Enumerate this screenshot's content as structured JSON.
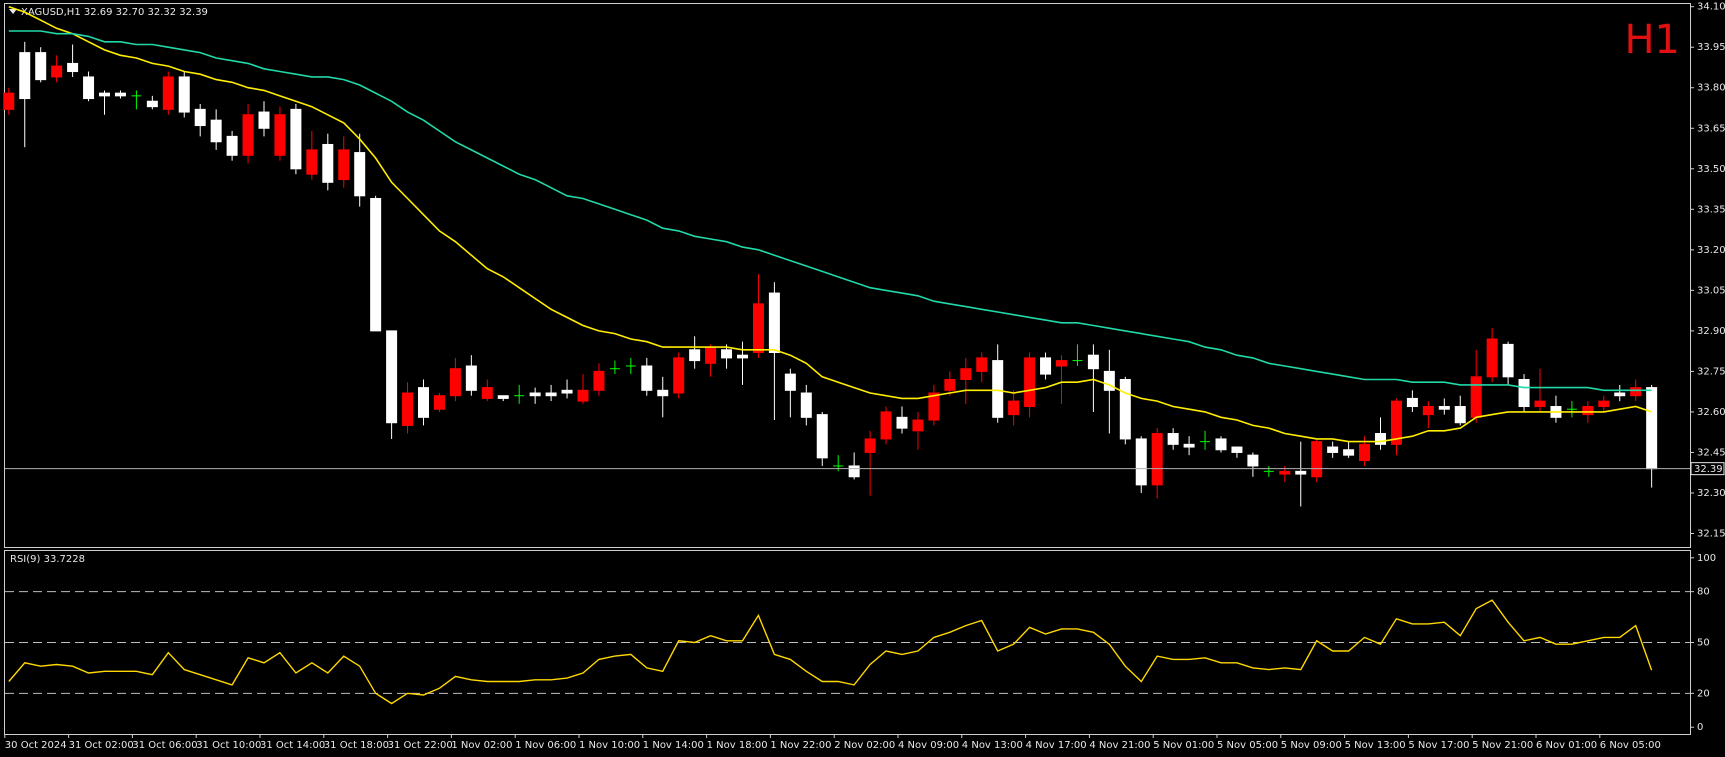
{
  "chart_data": {
    "type": "candlestick",
    "title": "XAGUSD,H1  32.69 32.70 32.32 32.39",
    "timeframe_label": "H1",
    "categories": [
      "30 Oct 2024",
      null,
      null,
      null,
      "31 Oct 02:00",
      null,
      null,
      null,
      "31 Oct 06:00",
      null,
      null,
      null,
      "31 Oct 10:00",
      null,
      null,
      null,
      "31 Oct 14:00",
      null,
      null,
      null,
      "31 Oct 18:00",
      null,
      null,
      null,
      "31 Oct 22:00",
      null,
      null,
      null,
      "1 Nov 02:00",
      null,
      null,
      null,
      "1 Nov 06:00",
      null,
      null,
      null,
      "1 Nov 10:00",
      null,
      null,
      null,
      "1 Nov 14:00",
      null,
      null,
      null,
      "1 Nov 18:00",
      null,
      null,
      null,
      "1 Nov 22:00",
      null,
      null,
      null,
      "2 Nov 02:00",
      null,
      null,
      null,
      "4 Nov 09:00",
      null,
      null,
      null,
      "4 Nov 13:00",
      null,
      null,
      null,
      "4 Nov 17:00",
      null,
      null,
      null,
      "4 Nov 21:00",
      null,
      null,
      null,
      "5 Nov 01:00",
      null,
      null,
      null,
      "5 Nov 05:00",
      null,
      null,
      null,
      "5 Nov 09:00",
      null,
      null,
      null,
      "5 Nov 13:00",
      null,
      null,
      null,
      "5 Nov 17:00",
      null,
      null,
      null,
      "5 Nov 21:00",
      null,
      null,
      null,
      "6 Nov 01:00",
      null,
      null,
      null,
      "6 Nov 05:00",
      null,
      null,
      null
    ],
    "open": [
      33.72,
      33.93,
      33.93,
      33.84,
      33.89,
      33.84,
      33.78,
      33.78,
      33.77,
      33.75,
      33.72,
      33.84,
      33.72,
      33.68,
      33.62,
      33.55,
      33.71,
      33.55,
      33.72,
      33.48,
      33.59,
      33.46,
      33.56,
      33.39,
      32.9,
      32.55,
      32.69,
      32.61,
      32.66,
      32.77,
      32.65,
      32.66,
      32.66,
      32.67,
      32.67,
      32.68,
      32.64,
      32.68,
      32.76,
      32.77,
      32.77,
      32.68,
      32.67,
      32.83,
      32.78,
      32.83,
      32.81,
      32.82,
      33.04,
      32.74,
      32.67,
      32.59,
      32.4,
      32.4,
      32.45,
      32.5,
      32.58,
      32.53,
      32.57,
      32.68,
      32.72,
      32.75,
      32.79,
      32.59,
      32.62,
      32.8,
      32.77,
      32.79,
      32.81,
      32.75,
      32.72,
      32.5,
      32.33,
      32.52,
      32.48,
      32.49,
      32.5,
      32.47,
      32.44,
      32.38,
      32.37,
      32.38,
      32.36,
      32.47,
      32.46,
      32.42,
      32.52,
      32.48,
      32.65,
      32.59,
      32.62,
      32.62,
      32.58,
      32.73,
      32.85,
      32.72,
      32.62,
      32.62,
      32.61,
      32.59,
      32.62,
      32.67,
      32.66,
      32.69
    ],
    "high": [
      33.8,
      33.97,
      33.95,
      33.92,
      33.96,
      33.86,
      33.79,
      33.79,
      33.79,
      33.77,
      33.86,
      33.86,
      33.74,
      33.72,
      33.64,
      33.74,
      33.75,
      33.73,
      33.74,
      33.64,
      33.63,
      33.62,
      33.63,
      33.4,
      32.9,
      32.71,
      32.72,
      32.67,
      32.8,
      32.81,
      32.72,
      32.66,
      32.7,
      32.69,
      32.7,
      32.72,
      32.74,
      32.78,
      32.79,
      32.8,
      32.8,
      32.73,
      32.82,
      32.88,
      32.85,
      32.85,
      32.86,
      33.11,
      33.08,
      32.76,
      32.7,
      32.6,
      32.44,
      32.45,
      32.53,
      32.62,
      32.62,
      32.6,
      32.7,
      32.75,
      32.8,
      32.82,
      32.85,
      32.68,
      32.82,
      32.82,
      32.81,
      32.85,
      32.85,
      32.83,
      32.73,
      32.51,
      32.54,
      32.54,
      32.51,
      32.53,
      32.51,
      32.47,
      32.45,
      32.4,
      32.4,
      32.49,
      32.5,
      32.49,
      32.49,
      32.51,
      32.58,
      32.65,
      32.68,
      32.64,
      32.65,
      32.66,
      32.83,
      32.91,
      32.86,
      32.74,
      32.76,
      32.66,
      32.64,
      32.64,
      32.66,
      32.7,
      32.72,
      32.7
    ],
    "low": [
      33.7,
      33.58,
      33.82,
      33.82,
      33.84,
      33.75,
      33.7,
      33.76,
      33.72,
      33.72,
      33.7,
      33.69,
      33.62,
      33.57,
      33.53,
      33.52,
      33.62,
      33.53,
      33.48,
      33.46,
      33.42,
      33.43,
      33.36,
      32.9,
      32.5,
      32.52,
      32.55,
      32.6,
      32.64,
      32.66,
      32.64,
      32.64,
      32.63,
      32.63,
      32.64,
      32.65,
      32.63,
      32.66,
      32.74,
      32.74,
      32.66,
      32.58,
      32.65,
      32.76,
      32.73,
      32.76,
      32.7,
      32.8,
      32.57,
      32.58,
      32.55,
      32.4,
      32.38,
      32.35,
      32.29,
      32.48,
      32.52,
      32.46,
      32.55,
      32.66,
      32.63,
      32.71,
      32.56,
      32.55,
      32.58,
      32.72,
      32.63,
      32.77,
      32.6,
      32.52,
      32.48,
      32.3,
      32.28,
      32.46,
      32.44,
      32.46,
      32.45,
      32.43,
      32.36,
      32.36,
      32.34,
      32.25,
      32.34,
      32.43,
      32.43,
      32.4,
      32.46,
      32.44,
      32.6,
      32.54,
      32.59,
      32.55,
      32.56,
      32.71,
      32.7,
      32.6,
      32.6,
      32.56,
      32.58,
      32.56,
      32.6,
      32.64,
      32.64,
      32.32
    ],
    "close": [
      33.78,
      33.76,
      33.83,
      33.88,
      33.86,
      33.76,
      33.77,
      33.77,
      33.77,
      33.73,
      33.84,
      33.71,
      33.66,
      33.6,
      33.55,
      33.7,
      33.65,
      33.7,
      33.5,
      33.57,
      33.45,
      33.57,
      33.4,
      32.9,
      32.56,
      32.67,
      32.58,
      32.66,
      32.76,
      32.68,
      32.69,
      32.65,
      32.66,
      32.66,
      32.66,
      32.67,
      32.68,
      32.75,
      32.76,
      32.77,
      32.68,
      32.66,
      32.8,
      32.79,
      32.84,
      32.8,
      32.8,
      33.0,
      32.82,
      32.68,
      32.58,
      32.43,
      32.4,
      32.36,
      32.5,
      32.6,
      32.54,
      32.57,
      32.67,
      32.72,
      32.76,
      32.8,
      32.58,
      32.64,
      32.8,
      32.74,
      32.79,
      32.79,
      32.76,
      32.68,
      32.5,
      32.33,
      32.52,
      32.48,
      32.47,
      32.49,
      32.46,
      32.45,
      32.4,
      32.38,
      32.38,
      32.37,
      32.49,
      32.45,
      32.44,
      32.48,
      32.48,
      32.64,
      32.62,
      32.62,
      32.61,
      32.56,
      32.73,
      32.87,
      32.73,
      32.62,
      32.64,
      32.58,
      32.61,
      32.62,
      32.64,
      32.66,
      32.69,
      32.39
    ],
    "bull_color": "#ff0000",
    "bear_color": "#ffffff",
    "doji_color": "#00ff00",
    "moving_averages": [
      {
        "color": "#ffee00",
        "values": [
          34.1,
          34.08,
          34.05,
          34.02,
          34.0,
          33.97,
          33.94,
          33.92,
          33.91,
          33.89,
          33.88,
          33.86,
          33.85,
          33.83,
          33.82,
          33.8,
          33.79,
          33.77,
          33.75,
          33.73,
          33.7,
          33.67,
          33.61,
          33.54,
          33.45,
          33.39,
          33.33,
          33.27,
          33.23,
          33.18,
          33.13,
          33.1,
          33.06,
          33.02,
          32.98,
          32.95,
          32.92,
          32.9,
          32.89,
          32.87,
          32.86,
          32.84,
          32.84,
          32.84,
          32.84,
          32.84,
          32.83,
          32.83,
          32.83,
          32.81,
          32.78,
          32.73,
          32.71,
          32.69,
          32.67,
          32.66,
          32.65,
          32.65,
          32.66,
          32.67,
          32.68,
          32.68,
          32.68,
          32.67,
          32.68,
          32.69,
          32.71,
          32.71,
          32.72,
          32.7,
          32.67,
          32.65,
          32.64,
          32.62,
          32.61,
          32.6,
          32.58,
          32.57,
          32.55,
          32.54,
          32.52,
          32.51,
          32.5,
          32.5,
          32.49,
          32.49,
          32.49,
          32.5,
          32.51,
          32.53,
          32.53,
          32.54,
          32.58,
          32.59,
          32.6,
          32.6,
          32.6,
          32.6,
          32.6,
          32.6,
          32.6,
          32.61,
          32.62,
          32.6
        ]
      },
      {
        "color": "#20d8a8",
        "values": [
          34.01,
          34.01,
          34.01,
          34.0,
          34.0,
          33.99,
          33.97,
          33.97,
          33.96,
          33.96,
          33.95,
          33.94,
          33.93,
          33.91,
          33.9,
          33.89,
          33.87,
          33.86,
          33.85,
          33.84,
          33.84,
          33.83,
          33.81,
          33.78,
          33.75,
          33.71,
          33.68,
          33.64,
          33.6,
          33.57,
          33.54,
          33.51,
          33.48,
          33.46,
          33.43,
          33.4,
          33.39,
          33.37,
          33.35,
          33.33,
          33.31,
          33.28,
          33.27,
          33.25,
          33.24,
          33.23,
          33.21,
          33.2,
          33.18,
          33.16,
          33.14,
          33.12,
          33.1,
          33.08,
          33.06,
          33.05,
          33.04,
          33.03,
          33.01,
          33.0,
          32.99,
          32.98,
          32.97,
          32.96,
          32.95,
          32.94,
          32.93,
          32.93,
          32.92,
          32.91,
          32.9,
          32.89,
          32.88,
          32.87,
          32.86,
          32.84,
          32.83,
          32.81,
          32.8,
          32.78,
          32.77,
          32.76,
          32.75,
          32.74,
          32.73,
          32.72,
          32.72,
          32.72,
          32.71,
          32.71,
          32.71,
          32.7,
          32.7,
          32.7,
          32.7,
          32.69,
          32.69,
          32.69,
          32.69,
          32.69,
          32.68,
          32.68,
          32.68,
          32.68
        ]
      }
    ],
    "ylim": [
      32.1,
      34.11
    ],
    "yticks": [
      {
        "value": 32.15,
        "label": "32.15"
      },
      {
        "value": 32.3,
        "label": "32.30"
      },
      32.45,
      {
        "value": 32.6,
        "label": "32.60"
      },
      32.75,
      {
        "value": 32.9,
        "label": "32.90"
      },
      33.05,
      {
        "value": 33.2,
        "label": "33.20"
      },
      33.35,
      {
        "value": 33.5,
        "label": "33.50"
      },
      33.65,
      {
        "value": 33.8,
        "label": "33.80"
      },
      33.95,
      {
        "value": 34.1,
        "label": "34.10"
      }
    ],
    "indicator": {
      "title": "RSI(9) 33.7228",
      "color": "#ffd700",
      "ylim": [
        -4,
        104
      ],
      "yticks": [
        0,
        20,
        50,
        80,
        100
      ],
      "levels": [
        20,
        50,
        80
      ],
      "values": [
        27,
        38,
        36,
        37,
        36,
        32,
        33,
        33,
        33,
        31,
        44,
        34,
        31,
        28,
        25,
        41,
        38,
        44,
        32,
        38,
        32,
        42,
        36,
        20,
        14,
        20,
        19,
        23,
        30,
        28,
        27,
        27,
        27,
        28,
        28,
        29,
        32,
        40,
        42,
        43,
        35,
        33,
        51,
        50,
        54,
        51,
        51,
        66,
        43,
        40,
        33,
        27,
        27,
        25,
        37,
        45,
        43,
        45,
        53,
        56,
        60,
        63,
        45,
        49,
        59,
        55,
        58,
        58,
        56,
        49,
        36,
        27,
        42,
        40,
        40,
        41,
        38,
        38,
        35,
        34,
        35,
        34,
        51,
        45,
        45,
        53,
        49,
        64,
        61,
        61,
        62,
        54,
        70,
        75,
        62,
        51,
        53,
        49,
        49,
        51,
        53,
        53,
        60,
        33.7228
      ]
    }
  }
}
